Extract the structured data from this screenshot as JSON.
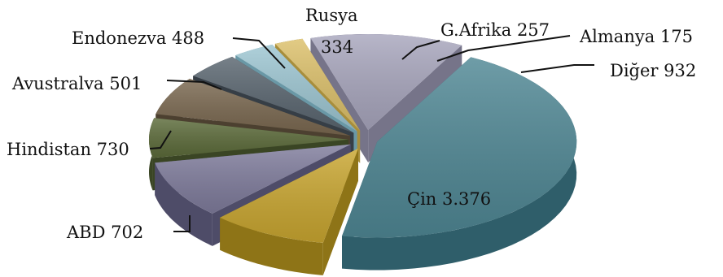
{
  "chart_data": {
    "type": "pie",
    "style": "3d-exploded",
    "slices": [
      {
        "label": "Çin",
        "value": 3376,
        "display": "Çin 3.376",
        "color": "#4f8794",
        "side": "#2f5e6a"
      },
      {
        "label": "ABD",
        "value": 702,
        "display": "ABD 702",
        "color": "#c9a630",
        "side": "#8e7417"
      },
      {
        "label": "Hindistan",
        "value": 730,
        "display": "Hindistan 730",
        "color": "#7f7c9c",
        "side": "#4e4c68"
      },
      {
        "label": "Avustralya",
        "value": 501,
        "display": "Avustralva 501",
        "color": "#5c6b3a",
        "side": "#3a4524"
      },
      {
        "label": "Endonezya",
        "value": 488,
        "display": "Endonezva 488",
        "color": "#7a6850",
        "side": "#4c4030"
      },
      {
        "label": "Rusya",
        "value": 334,
        "display_line1": "Rusya",
        "display_line2": "334",
        "color": "#59656f",
        "side": "#363e46"
      },
      {
        "label": "G.Afrika",
        "value": 257,
        "display": "G.Afrika 257",
        "color": "#9dc6d2",
        "side": "#6a98a6"
      },
      {
        "label": "Almanya",
        "value": 175,
        "display": "Almanya 175",
        "color": "#dcc06a",
        "side": "#a88e3c"
      },
      {
        "label": "Diğer",
        "value": 932,
        "display": "Diğer 932",
        "color": "#a8a6bd",
        "side": "#767489"
      }
    ]
  }
}
